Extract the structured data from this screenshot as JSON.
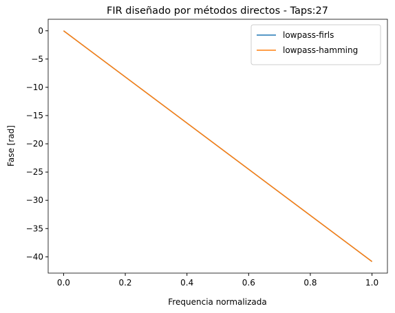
{
  "chart_data": {
    "type": "line",
    "title": "FIR diseñado por métodos directos - Taps:27",
    "xlabel": "Frequencia normalizada",
    "ylabel": "Fase [rad]",
    "x": [
      0,
      0.25,
      0.5,
      0.75,
      1
    ],
    "series": [
      {
        "name": "lowpass-firls",
        "color": "#1f77b4",
        "values": [
          0,
          -10.21,
          -20.42,
          -30.63,
          -40.84
        ]
      },
      {
        "name": "lowpass-hamming",
        "color": "#ff7f0e",
        "values": [
          0,
          -10.21,
          -20.42,
          -30.63,
          -40.84
        ]
      }
    ],
    "xlim": [
      -0.05,
      1.05
    ],
    "ylim": [
      -42.88,
      2.04
    ],
    "xticks": [
      {
        "value": 0,
        "label": "0.0"
      },
      {
        "value": 0.2,
        "label": "0.2"
      },
      {
        "value": 0.4,
        "label": "0.4"
      },
      {
        "value": 0.6,
        "label": "0.6"
      },
      {
        "value": 0.8,
        "label": "0.8"
      },
      {
        "value": 1,
        "label": "1.0"
      }
    ],
    "yticks": [
      0,
      {
        "value": -5,
        "label": "−5"
      },
      {
        "value": -10,
        "label": "−10"
      },
      {
        "value": -15,
        "label": "−15"
      },
      {
        "value": -20,
        "label": "−20"
      },
      {
        "value": -25,
        "label": "−25"
      },
      {
        "value": -30,
        "label": "−30"
      },
      {
        "value": -35,
        "label": "−35"
      },
      {
        "value": -40,
        "label": "−40"
      }
    ],
    "legend": "upper-right"
  }
}
